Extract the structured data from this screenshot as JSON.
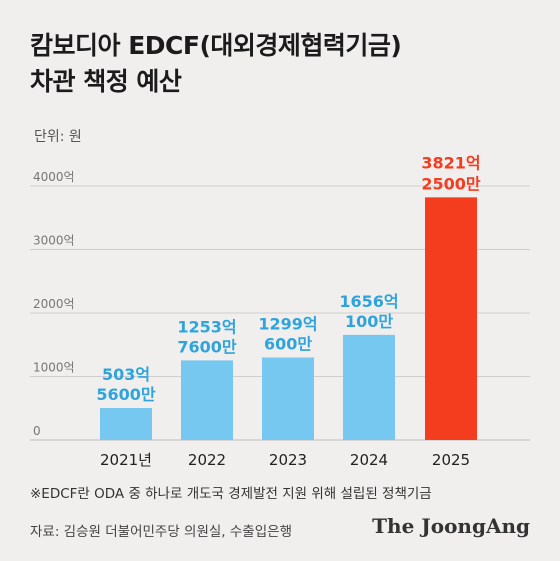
{
  "chart_data": {
    "type": "bar",
    "title_lines": [
      "캄보디아 EDCF(대외경제협력기금)",
      "차관 책정 예산"
    ],
    "unit_label": "단위: 원",
    "categories": [
      "2021년",
      "2022",
      "2023",
      "2024",
      "2025"
    ],
    "values": [
      503.56,
      1253.76,
      1299.06,
      1656.01,
      3821.25
    ],
    "data_labels": [
      [
        "503억",
        "5600만"
      ],
      [
        "1253억",
        "7600만"
      ],
      [
        "1299억",
        "600만"
      ],
      [
        "1656억",
        "100만"
      ],
      [
        "3821억",
        "2500만"
      ]
    ],
    "y_ticks": [
      {
        "value": 0,
        "label": "0"
      },
      {
        "value": 1000,
        "label": "1000억"
      },
      {
        "value": 2000,
        "label": "2000억"
      },
      {
        "value": 3000,
        "label": "3000억"
      },
      {
        "value": 4000,
        "label": "4000억"
      }
    ],
    "ylim": [
      0,
      4000
    ],
    "grid": true,
    "colors": {
      "bar": "#76c8f1",
      "highlight_bar": "#f43c1f",
      "label": "#2fa4dc",
      "highlight_label": "#f43c1f",
      "grid": "#cfcfcf"
    },
    "highlight_index": 4
  },
  "note": "※EDCF란 ODA 중 하나로 개도국 경제발전 지원 위해 설립된 정책기금",
  "source": "자료: 김승원 더불어민주당 의원실, 수출입은행",
  "logo": "The JoongAng"
}
